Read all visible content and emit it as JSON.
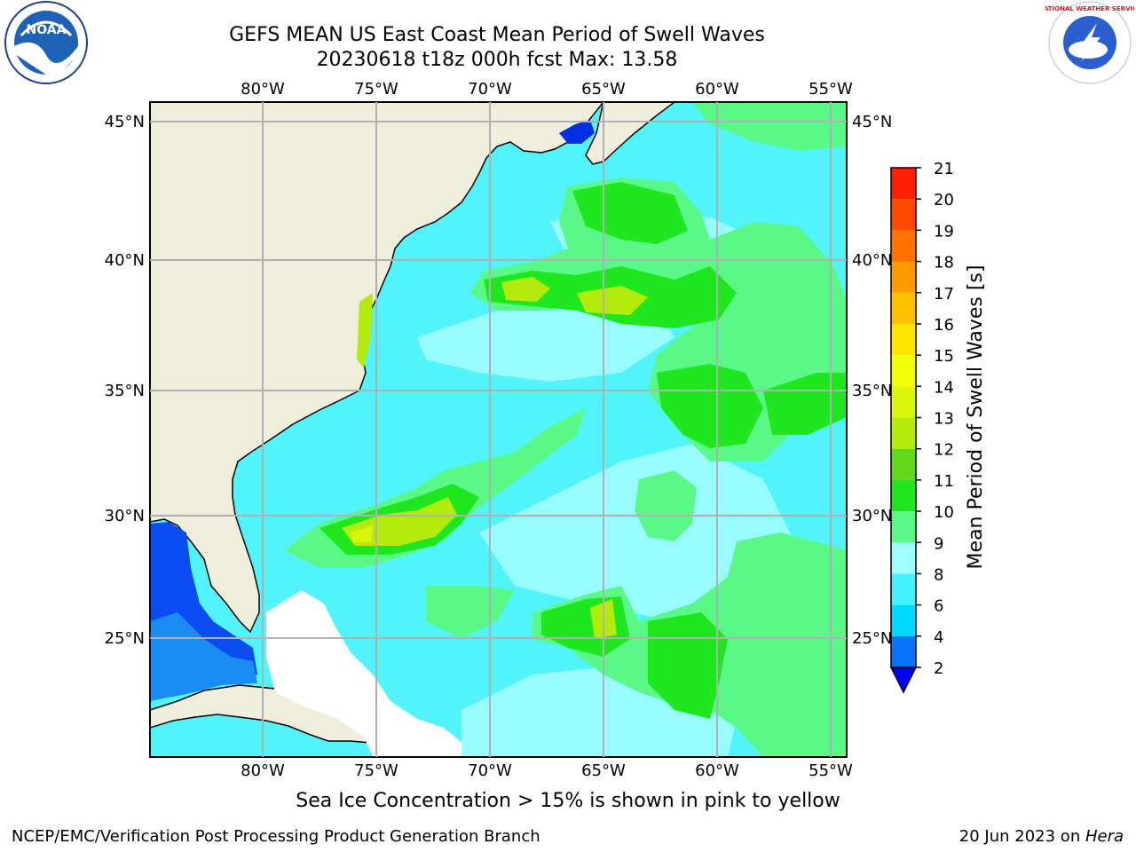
{
  "title": {
    "line1": "GEFS MEAN US East Coast Mean Period of Swell Waves",
    "line2": "20230618 t18z 000h fcst   Max: 13.58"
  },
  "map": {
    "lon_ticks": [
      "80°W",
      "75°W",
      "70°W",
      "65°W",
      "60°W",
      "55°W"
    ],
    "lat_ticks": [
      "45°N",
      "40°N",
      "35°N",
      "30°N",
      "25°N"
    ],
    "land_color": "#efeddc",
    "grid_color": "#b0b0b0"
  },
  "colorbar": {
    "label": "Mean Period of Swell Waves [s]",
    "ticks": [
      "2",
      "4",
      "6",
      "8",
      "9",
      "10",
      "11",
      "12",
      "13",
      "14",
      "15",
      "16",
      "17",
      "18",
      "19",
      "20",
      "21"
    ],
    "colors": [
      "#0a72fa",
      "#00d8fe",
      "#44f2fe",
      "#a0fdfe",
      "#59f887",
      "#1ee61f",
      "#63d71a",
      "#b3ec0c",
      "#d9f60c",
      "#f2fe08",
      "#fee400",
      "#ffc000",
      "#ff9a00",
      "#ff7200",
      "#ff4800",
      "#ff1e00"
    ],
    "under_color": "#0000ff"
  },
  "ice_note": "Sea Ice Concentration > 15% is shown in pink to yellow",
  "footer": {
    "left": "NCEP/EMC/Verification Post Processing Product Generation Branch",
    "date": "20 Jun 2023 on ",
    "host": "Hera"
  },
  "logos": {
    "noaa_text": "NOAA",
    "nws_text": "NATIONAL WEATHER SERVICE"
  }
}
